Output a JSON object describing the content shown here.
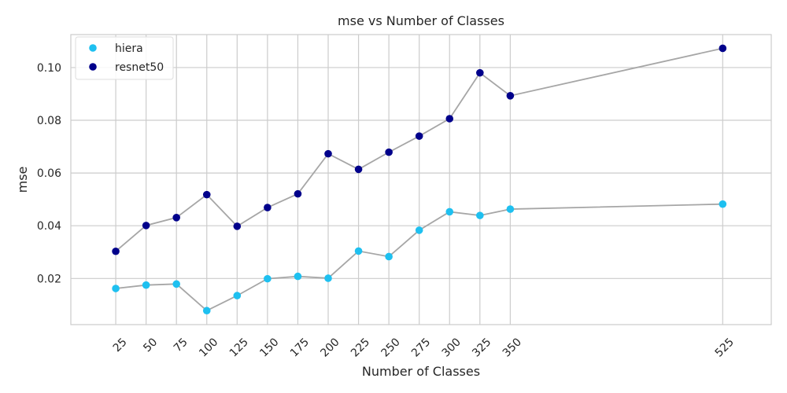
{
  "chart_data": {
    "type": "scatter",
    "title": "mse vs Number of Classes",
    "xlabel": "Number of Classes",
    "ylabel": "mse",
    "x": [
      25,
      50,
      75,
      100,
      125,
      150,
      175,
      200,
      225,
      250,
      275,
      300,
      325,
      350,
      525
    ],
    "x_tick_labels": [
      "25",
      "50",
      "75",
      "100",
      "125",
      "150",
      "175",
      "200",
      "225",
      "250",
      "275",
      "300",
      "325",
      "350",
      "525"
    ],
    "xlim": [
      -12,
      565
    ],
    "ylim": [
      0.0025,
      0.1125
    ],
    "y_ticks": [
      0.02,
      0.04,
      0.06,
      0.08,
      0.1
    ],
    "y_tick_labels": [
      "0.02",
      "0.04",
      "0.06",
      "0.08",
      "0.10"
    ],
    "grid": true,
    "legend_position": "top-left",
    "connector_color": "#a6a6a6",
    "series": [
      {
        "name": "hiera",
        "color": "#1ec0f0",
        "values": [
          0.0162,
          0.0175,
          0.0179,
          0.0078,
          0.0135,
          0.0199,
          0.0208,
          0.0201,
          0.0304,
          0.0283,
          0.0383,
          0.0453,
          0.0439,
          0.0463,
          0.0482
        ]
      },
      {
        "name": "resnet50",
        "color": "#00008b",
        "values": [
          0.0303,
          0.0401,
          0.0431,
          0.0518,
          0.0398,
          0.0469,
          0.0521,
          0.0673,
          0.0614,
          0.0679,
          0.074,
          0.0806,
          0.098,
          0.0893,
          0.1073
        ]
      }
    ]
  }
}
